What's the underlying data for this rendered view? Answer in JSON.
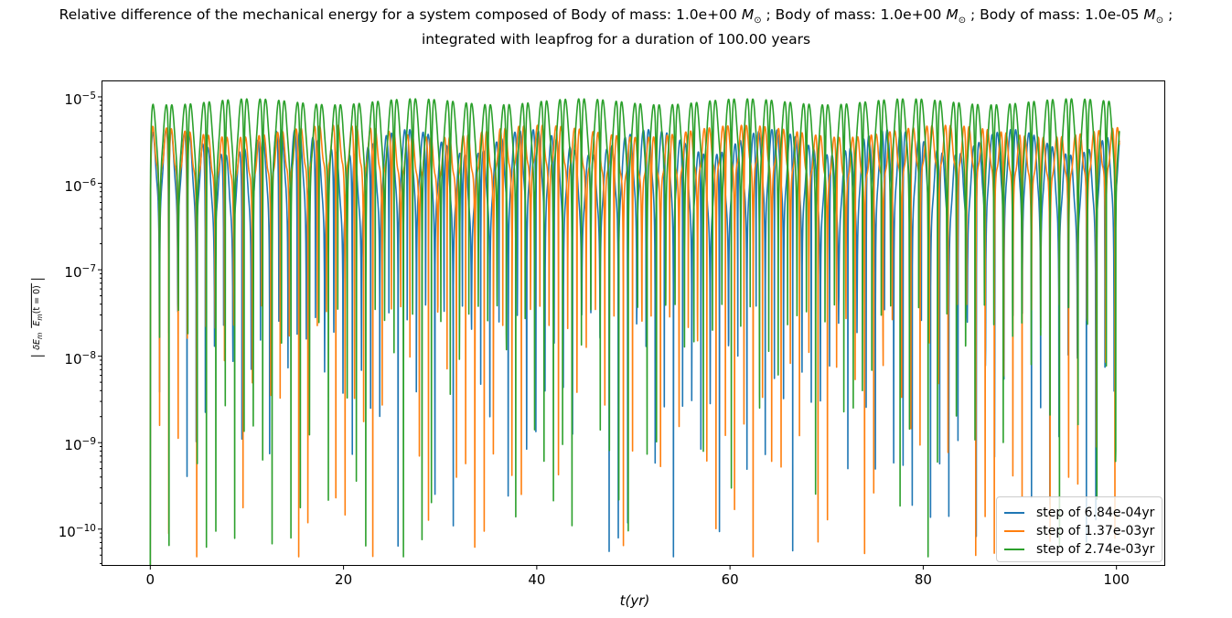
{
  "figure": {
    "background": "#ffffff"
  },
  "title": {
    "line1_segments": [
      {
        "text": "Relative difference of the mechanical energy for a system composed of Body of mass: 1.0e+00 "
      },
      {
        "text": "M",
        "italic": true
      },
      {
        "text": "⊙",
        "sub": true
      },
      {
        "text": " ; Body of mass: 1.0e+00 "
      },
      {
        "text": "M",
        "italic": true
      },
      {
        "text": "⊙",
        "sub": true
      },
      {
        "text": " ; Body of mass: 1.0e-05 "
      },
      {
        "text": "M",
        "italic": true
      },
      {
        "text": "⊙",
        "sub": true
      },
      {
        "text": " ;"
      }
    ],
    "line2": "integrated with leapfrog for a duration of 100.00 years"
  },
  "axes": {
    "xlabel": "t(yr)",
    "ylabel": {
      "numerator_main": "δE",
      "numerator_sub": "m",
      "denominator_main": "E",
      "denominator_sub": "m",
      "denominator_tail": "(t = 0)"
    }
  },
  "chart_data": {
    "type": "line",
    "title": "Relative difference of the mechanical energy for a system composed of Body of mass: 1.0e+00 M⊙ ; Body of mass: 1.0e+00 M⊙ ; Body of mass: 1.0e-05 M⊙ ; integrated with leapfrog for a duration of 100.00 years",
    "xlabel": "t(yr)",
    "ylabel": "|δE_m / E_m(t=0)|",
    "xscale": "linear",
    "yscale": "log",
    "xlim": [
      -5,
      105
    ],
    "ylim": [
      3.8e-11,
      1.53e-05
    ],
    "x_ticks": [
      0,
      20,
      40,
      60,
      80,
      100
    ],
    "x_tick_labels": [
      "0",
      "20",
      "40",
      "60",
      "80",
      "100"
    ],
    "y_tick_exponents": [
      -5,
      -6,
      -7,
      -8,
      -9,
      -10
    ],
    "grid": false,
    "legend_position": "lower right",
    "integrator": "leapfrog",
    "duration_years": 100.0,
    "series": [
      {
        "name": "step of 6.84e-04yr",
        "color": "#1f77b4",
        "step_yr": 0.000684,
        "peak_level": 3.3e-06,
        "typical_dip_floor": 1e-09,
        "model": {
          "pattern": "abs_harmonic_oscillation",
          "period_yr": 1.9,
          "amplitude": 2.3e-06,
          "h2": 0.52,
          "h3": 0.18,
          "env_mod": 0.33,
          "env_period_yr": 12.5,
          "env_phase": 0.7,
          "t_start": 0,
          "t_end": 100.3,
          "samples": 3600
        }
      },
      {
        "name": "step of 1.37e-03yr",
        "color": "#ff7f0e",
        "step_yr": 0.00137,
        "peak_level": 4.5e-06,
        "typical_dip_floor": 1e-09,
        "model": {
          "pattern": "abs_harmonic_oscillation",
          "period_yr": 1.92,
          "amplitude": 3.1e-06,
          "h2": 0.42,
          "h3": 0.24,
          "env_mod": 0.16,
          "env_period_yr": 21.0,
          "env_phase": 2.1,
          "t_start": 0,
          "t_end": 100.3,
          "samples": 3600
        }
      },
      {
        "name": "step of 2.74e-03yr",
        "color": "#2ca02c",
        "step_yr": 0.00274,
        "peak_level": 9.5e-06,
        "typical_dip_floor": 1e-09,
        "model": {
          "pattern": "abs_harmonic_oscillation",
          "period_yr": 1.94,
          "amplitude": 6.8e-06,
          "h2": 0.46,
          "h3": 0.14,
          "env_mod": 0.08,
          "env_period_yr": 17.0,
          "env_phase": 4.0,
          "t_start": 0,
          "t_end": 100.3,
          "samples": 3600
        }
      }
    ]
  }
}
